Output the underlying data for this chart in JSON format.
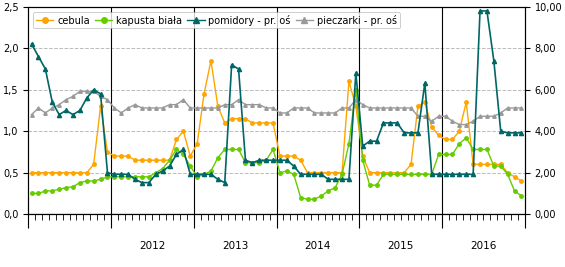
{
  "legend_labels": [
    "cebula",
    "kapusta biała",
    "pomidory - pr. oś",
    "pieczarki - pr. oś"
  ],
  "colors": {
    "cebula": "#FFA500",
    "kapusta_biala": "#66CC00",
    "pomidory": "#006666",
    "pieczarki": "#999999"
  },
  "ylim_left": [
    0,
    2.5
  ],
  "ylim_right": [
    0,
    10.0
  ],
  "yticks_left": [
    0,
    0.5,
    1.0,
    1.5,
    2.0,
    2.5
  ],
  "yticks_right": [
    0.0,
    2.0,
    4.0,
    6.0,
    8.0,
    10.0
  ],
  "year_labels": [
    "2012",
    "2013",
    "2014",
    "2015",
    "2016"
  ],
  "background_color": "#ffffff",
  "grid_color": "#bbbbbb",
  "n_points": 72,
  "cebula": [
    0.5,
    0.5,
    0.5,
    0.5,
    0.5,
    0.5,
    0.5,
    0.5,
    0.5,
    0.6,
    1.3,
    0.75,
    0.7,
    0.7,
    0.7,
    0.65,
    0.65,
    0.65,
    0.65,
    0.65,
    0.65,
    0.9,
    1.0,
    0.7,
    0.85,
    1.45,
    1.85,
    1.3,
    1.1,
    1.15,
    1.15,
    1.15,
    1.1,
    1.1,
    1.1,
    1.1,
    0.7,
    0.7,
    0.7,
    0.65,
    0.5,
    0.5,
    0.5,
    0.5,
    0.5,
    0.5,
    1.6,
    1.3,
    0.7,
    0.5,
    0.5,
    0.5,
    0.5,
    0.5,
    0.5,
    0.6,
    1.3,
    1.35,
    1.05,
    0.95,
    0.9,
    0.9,
    1.0,
    1.35,
    0.6,
    0.6,
    0.6,
    0.6,
    0.6,
    0.5,
    0.45,
    0.4
  ],
  "kapusta_biala": [
    0.25,
    0.25,
    0.28,
    0.28,
    0.3,
    0.32,
    0.33,
    0.38,
    0.4,
    0.4,
    0.42,
    0.45,
    0.45,
    0.45,
    0.45,
    0.45,
    0.45,
    0.45,
    0.5,
    0.55,
    0.65,
    0.78,
    0.72,
    0.58,
    0.45,
    0.48,
    0.52,
    0.68,
    0.78,
    0.78,
    0.78,
    0.62,
    0.62,
    0.62,
    0.65,
    0.78,
    0.5,
    0.52,
    0.48,
    0.2,
    0.18,
    0.18,
    0.22,
    0.28,
    0.32,
    0.48,
    0.85,
    1.5,
    0.65,
    0.35,
    0.35,
    0.48,
    0.48,
    0.48,
    0.48,
    0.48,
    0.48,
    0.48,
    0.48,
    0.72,
    0.72,
    0.72,
    0.85,
    0.92,
    0.78,
    0.78,
    0.78,
    0.58,
    0.58,
    0.48,
    0.28,
    0.22
  ],
  "pomidory": [
    2.05,
    1.9,
    1.75,
    1.35,
    1.2,
    1.25,
    1.2,
    1.25,
    1.4,
    1.5,
    1.45,
    0.5,
    0.48,
    0.48,
    0.48,
    0.42,
    0.38,
    0.38,
    0.48,
    0.52,
    0.58,
    0.72,
    0.78,
    0.48,
    0.48,
    0.48,
    0.48,
    0.42,
    0.38,
    1.8,
    1.75,
    0.65,
    0.62,
    0.65,
    0.65,
    0.65,
    0.65,
    0.65,
    0.58,
    0.48,
    0.48,
    0.48,
    0.48,
    0.42,
    0.42,
    0.42,
    0.42,
    1.7,
    0.82,
    0.88,
    0.88,
    1.1,
    1.1,
    1.1,
    0.98,
    0.98,
    0.98,
    1.58,
    0.48,
    0.48,
    0.48,
    0.48,
    0.48,
    0.48,
    0.48,
    2.45,
    2.45,
    1.85,
    1.0,
    0.98,
    0.98,
    0.98
  ],
  "pieczarki": [
    1.2,
    1.28,
    1.22,
    1.28,
    1.32,
    1.38,
    1.42,
    1.48,
    1.48,
    1.48,
    1.42,
    1.38,
    1.28,
    1.22,
    1.28,
    1.32,
    1.28,
    1.28,
    1.28,
    1.28,
    1.32,
    1.32,
    1.38,
    1.28,
    1.28,
    1.28,
    1.28,
    1.28,
    1.32,
    1.32,
    1.38,
    1.32,
    1.32,
    1.32,
    1.28,
    1.28,
    1.22,
    1.22,
    1.28,
    1.28,
    1.28,
    1.22,
    1.22,
    1.22,
    1.22,
    1.28,
    1.28,
    1.38,
    1.32,
    1.28,
    1.28,
    1.28,
    1.28,
    1.28,
    1.28,
    1.28,
    1.18,
    1.18,
    1.12,
    1.18,
    1.18,
    1.12,
    1.08,
    1.08,
    1.12,
    1.18,
    1.18,
    1.18,
    1.22,
    1.28,
    1.28,
    1.28
  ]
}
